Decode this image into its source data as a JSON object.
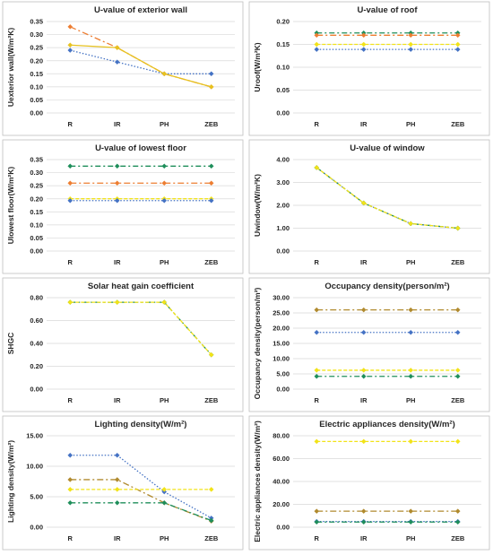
{
  "chart_data": [
    {
      "type": "line",
      "title": "U-value of exterior wall",
      "ylabel": "Uexterior wall(W/m²K)",
      "categories": [
        "R",
        "IR",
        "PH",
        "ZEB"
      ],
      "ylim": [
        0,
        0.35
      ],
      "yticks": [
        "0.00",
        "0.05",
        "0.10",
        "0.15",
        "0.20",
        "0.25",
        "0.30",
        "0.35"
      ],
      "series": [
        {
          "values": [
            0.24,
            0.195,
            0.15,
            0.15
          ],
          "color": "#4472c4",
          "dash": "1.5,2",
          "marker": "diamond"
        },
        {
          "values": [
            0.33,
            0.25,
            0.15,
            0.1
          ],
          "color": "#ed7d31",
          "dash": "7,3,2,3",
          "marker": "diamond"
        },
        {
          "values": [
            0.26,
            0.25,
            0.15,
            0.1
          ],
          "color": "#e7c21f",
          "dash": "",
          "marker": "diamond"
        }
      ]
    },
    {
      "type": "line",
      "title": "U-value of roof",
      "ylabel": "Uroof(W/m²K)",
      "categories": [
        "R",
        "IR",
        "PH",
        "ZEB"
      ],
      "ylim": [
        0,
        0.2
      ],
      "yticks": [
        "0.00",
        "0.05",
        "0.10",
        "0.15",
        "0.20"
      ],
      "series": [
        {
          "values": [
            0.139,
            0.139,
            0.139,
            0.139
          ],
          "color": "#4472c4",
          "dash": "1.5,2",
          "marker": "diamond"
        },
        {
          "values": [
            0.175,
            0.175,
            0.175,
            0.175
          ],
          "color": "#1e8e5a",
          "dash": "6,3,2,3",
          "marker": "diamond"
        },
        {
          "values": [
            0.17,
            0.17,
            0.17,
            0.17
          ],
          "color": "#ed7d31",
          "dash": "7,3,2,3",
          "marker": "diamond"
        },
        {
          "values": [
            0.15,
            0.15,
            0.15,
            0.15
          ],
          "color": "#f2e318",
          "dash": "4,2",
          "marker": "diamond"
        }
      ]
    },
    {
      "type": "line",
      "title": "U-value of lowest floor",
      "ylabel": "Ulowest floor(W/m²K)",
      "categories": [
        "R",
        "IR",
        "PH",
        "ZEB"
      ],
      "ylim": [
        0,
        0.35
      ],
      "yticks": [
        "0.00",
        "0.05",
        "0.10",
        "0.15",
        "0.20",
        "0.25",
        "0.30",
        "0.35"
      ],
      "series": [
        {
          "values": [
            0.325,
            0.325,
            0.325,
            0.325
          ],
          "color": "#1e8e5a",
          "dash": "6,3,2,3",
          "marker": "diamond"
        },
        {
          "values": [
            0.26,
            0.26,
            0.26,
            0.26
          ],
          "color": "#ed7d31",
          "dash": "7,3,2,3",
          "marker": "diamond"
        },
        {
          "values": [
            0.2,
            0.2,
            0.2,
            0.2
          ],
          "color": "#f2e318",
          "dash": "4,2",
          "marker": "diamond"
        },
        {
          "values": [
            0.193,
            0.193,
            0.193,
            0.193
          ],
          "color": "#4472c4",
          "dash": "1.5,2",
          "marker": "diamond"
        }
      ]
    },
    {
      "type": "line",
      "title": "U-value of window",
      "ylabel": "Uwindow(W/m²K)",
      "categories": [
        "R",
        "IR",
        "PH",
        "ZEB"
      ],
      "ylim": [
        0,
        4.0
      ],
      "yticks": [
        "0.00",
        "1.00",
        "2.00",
        "3.00",
        "4.00"
      ],
      "series": [
        {
          "values": [
            3.65,
            2.1,
            1.2,
            1.0
          ],
          "color": "#4472c4",
          "dash": "1.5,2",
          "marker": "diamond"
        },
        {
          "values": [
            3.65,
            2.1,
            1.2,
            1.0
          ],
          "color": "#1e8e5a",
          "dash": "6,3,2,3",
          "marker": "diamond"
        },
        {
          "values": [
            3.65,
            2.1,
            1.2,
            1.0
          ],
          "color": "#f2e318",
          "dash": "4,2",
          "marker": "diamond"
        }
      ]
    },
    {
      "type": "line",
      "title": "Solar heat gain coefficient",
      "ylabel": "SHGC",
      "categories": [
        "R",
        "IR",
        "PH",
        "ZEB"
      ],
      "ylim": [
        0,
        0.8
      ],
      "yticks": [
        "0.00",
        "0.20",
        "0.40",
        "0.60",
        "0.80"
      ],
      "series": [
        {
          "values": [
            0.76,
            0.76,
            0.76,
            0.3
          ],
          "color": "#1e8e5a",
          "dash": "6,3,2,3",
          "marker": "diamond"
        },
        {
          "values": [
            0.76,
            0.76,
            0.76,
            0.3
          ],
          "color": "#f2e318",
          "dash": "4,2",
          "marker": "diamond"
        }
      ]
    },
    {
      "type": "line",
      "title": "Occupancy density(person/m²)",
      "ylabel": "Occupancy density(person/m²)",
      "categories": [
        "R",
        "IR",
        "PH",
        "ZEB"
      ],
      "ylim": [
        0,
        30
      ],
      "yticks": [
        "0.00",
        "5.00",
        "10.00",
        "15.00",
        "20.00",
        "25.00",
        "30.00"
      ],
      "series": [
        {
          "values": [
            26,
            26,
            26,
            26
          ],
          "color": "#b08a2e",
          "dash": "7,3,2,3",
          "marker": "diamond"
        },
        {
          "values": [
            18.6,
            18.6,
            18.6,
            18.6
          ],
          "color": "#4472c4",
          "dash": "1.5,2",
          "marker": "diamond"
        },
        {
          "values": [
            6.2,
            6.2,
            6.2,
            6.2
          ],
          "color": "#f2e318",
          "dash": "4,2",
          "marker": "diamond"
        },
        {
          "values": [
            4.2,
            4.2,
            4.2,
            4.2
          ],
          "color": "#1e8e5a",
          "dash": "6,3,2,3",
          "marker": "diamond"
        }
      ]
    },
    {
      "type": "line",
      "title": "Lighting density(W/m²)",
      "ylabel": "Lighting density(W/m²)",
      "categories": [
        "R",
        "IR",
        "PH",
        "ZEB"
      ],
      "ylim": [
        0,
        15
      ],
      "yticks": [
        "0.00",
        "5.00",
        "10.00",
        "15.00"
      ],
      "series": [
        {
          "values": [
            11.8,
            11.8,
            5.8,
            1.5
          ],
          "color": "#4472c4",
          "dash": "1.5,2",
          "marker": "diamond"
        },
        {
          "values": [
            7.8,
            7.8,
            4.0,
            1.0
          ],
          "color": "#b08a2e",
          "dash": "7,3,2,3",
          "marker": "diamond"
        },
        {
          "values": [
            6.2,
            6.2,
            6.2,
            6.2
          ],
          "color": "#f2e318",
          "dash": "4,2",
          "marker": "diamond"
        },
        {
          "values": [
            4.0,
            4.0,
            4.0,
            1.1
          ],
          "color": "#1e8e5a",
          "dash": "6,3,2,3",
          "marker": "diamond"
        }
      ]
    },
    {
      "type": "line",
      "title": "Electric appliances density(W/m²)",
      "ylabel": "Electric appliances density(W/m²)",
      "categories": [
        "R",
        "IR",
        "PH",
        "ZEB"
      ],
      "ylim": [
        0,
        80
      ],
      "yticks": [
        "0.00",
        "20.00",
        "40.00",
        "60.00",
        "80.00"
      ],
      "series": [
        {
          "values": [
            75,
            75,
            75,
            75
          ],
          "color": "#f2e318",
          "dash": "4,2",
          "marker": "diamond"
        },
        {
          "values": [
            14,
            14,
            14,
            14
          ],
          "color": "#b08a2e",
          "dash": "7,3,2,3",
          "marker": "diamond"
        },
        {
          "values": [
            5,
            5,
            5,
            5
          ],
          "color": "#4472c4",
          "dash": "1.5,2",
          "marker": "diamond"
        },
        {
          "values": [
            4.5,
            4.5,
            4.5,
            4.5
          ],
          "color": "#1e8e5a",
          "dash": "6,3,2,3",
          "marker": "diamond"
        }
      ]
    }
  ]
}
